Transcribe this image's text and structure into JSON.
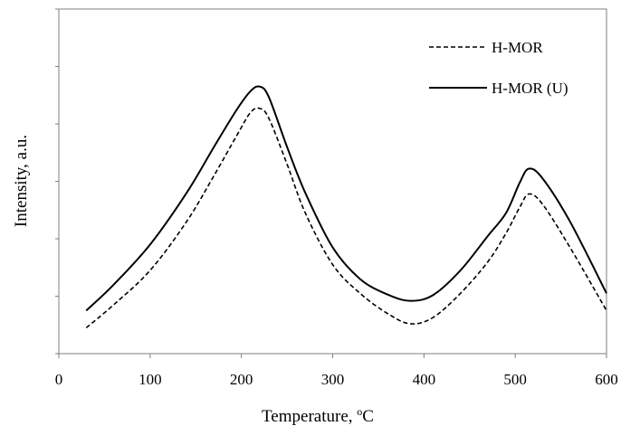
{
  "chart_data": {
    "type": "line",
    "title": "",
    "xlabel": "Temperature, °C",
    "xlabel_parts": {
      "text": "Temperature, ",
      "superscript": "o",
      "unit": "C"
    },
    "ylabel": "Intensity,  a.u.",
    "xlim": [
      0,
      600
    ],
    "xticks": [
      0,
      100,
      200,
      300,
      400,
      500,
      600
    ],
    "ylim": [
      0,
      6
    ],
    "yticks_shown": false,
    "grid": false,
    "legend_position": "top-right",
    "series": [
      {
        "name": "H-MOR",
        "style": "dashed",
        "color": "#000000",
        "x": [
          30,
          60,
          100,
          140,
          170,
          195,
          210,
          220,
          230,
          250,
          270,
          300,
          330,
          360,
          385,
          410,
          440,
          470,
          490,
          505,
          515,
          530,
          560,
          600
        ],
        "y": [
          0.45,
          0.85,
          1.45,
          2.3,
          3.1,
          3.8,
          4.2,
          4.27,
          4.1,
          3.3,
          2.45,
          1.55,
          1.05,
          0.7,
          0.52,
          0.63,
          1.05,
          1.6,
          2.1,
          2.55,
          2.78,
          2.6,
          1.85,
          0.75
        ]
      },
      {
        "name": "H-MOR (U)",
        "style": "solid",
        "color": "#000000",
        "x": [
          30,
          60,
          100,
          140,
          170,
          195,
          210,
          220,
          230,
          250,
          270,
          300,
          330,
          360,
          385,
          410,
          440,
          470,
          490,
          505,
          515,
          530,
          560,
          600
        ],
        "y": [
          0.75,
          1.2,
          1.9,
          2.8,
          3.6,
          4.25,
          4.57,
          4.65,
          4.47,
          3.6,
          2.8,
          1.85,
          1.3,
          1.03,
          0.92,
          1.02,
          1.45,
          2.05,
          2.45,
          2.98,
          3.22,
          3.05,
          2.3,
          1.05
        ]
      }
    ]
  }
}
